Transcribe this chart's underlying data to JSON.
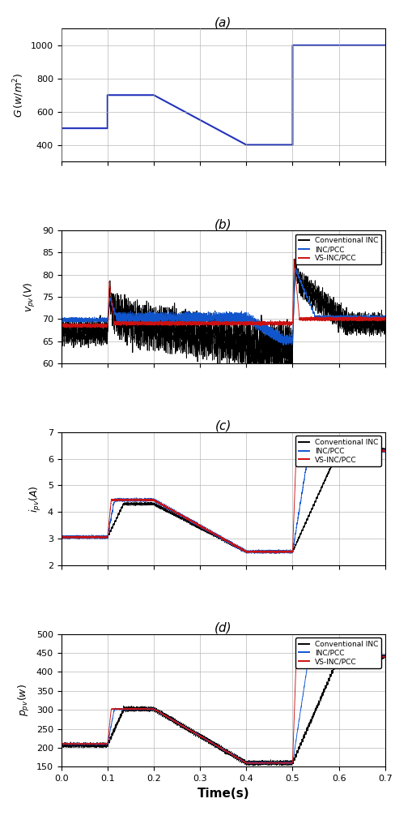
{
  "subplot_labels": [
    "(a)",
    "(b)",
    "(c)",
    "(d)"
  ],
  "panel_a": {
    "ylim": [
      300,
      1100
    ],
    "yticks": [
      400,
      600,
      800,
      1000
    ],
    "xlim": [
      0,
      0.7
    ],
    "xticks": [
      0,
      0.1,
      0.2,
      0.3,
      0.4,
      0.5,
      0.6,
      0.7
    ],
    "color": "#2233bb",
    "linewidth": 1.5,
    "x": [
      0,
      0.1,
      0.1,
      0.2,
      0.4,
      0.4,
      0.5,
      0.5,
      0.7
    ],
    "y": [
      500,
      500,
      700,
      700,
      400,
      400,
      400,
      1000,
      1000
    ]
  },
  "panel_b": {
    "ylim": [
      60,
      90
    ],
    "yticks": [
      60,
      65,
      70,
      75,
      80,
      85,
      90
    ],
    "xlim": [
      0,
      0.7
    ],
    "xticks": [
      0,
      0.1,
      0.2,
      0.3,
      0.4,
      0.5,
      0.6,
      0.7
    ]
  },
  "panel_c": {
    "ylim": [
      2,
      7
    ],
    "yticks": [
      2,
      3,
      4,
      5,
      6,
      7
    ],
    "xlim": [
      0,
      0.7
    ],
    "xticks": [
      0,
      0.1,
      0.2,
      0.3,
      0.4,
      0.5,
      0.6,
      0.7
    ]
  },
  "panel_d": {
    "ylim": [
      150,
      500
    ],
    "yticks": [
      150,
      200,
      250,
      300,
      350,
      400,
      450,
      500
    ],
    "xlim": [
      0,
      0.7
    ],
    "xticks": [
      0,
      0.1,
      0.2,
      0.3,
      0.4,
      0.5,
      0.6,
      0.7
    ]
  },
  "xlabel": "Time(s)",
  "legend_labels": [
    "Conventional INC",
    "INC/PCC",
    "VS-INC/PCC"
  ],
  "col_black": "#000000",
  "col_blue": "#1155cc",
  "col_red": "#cc1111"
}
